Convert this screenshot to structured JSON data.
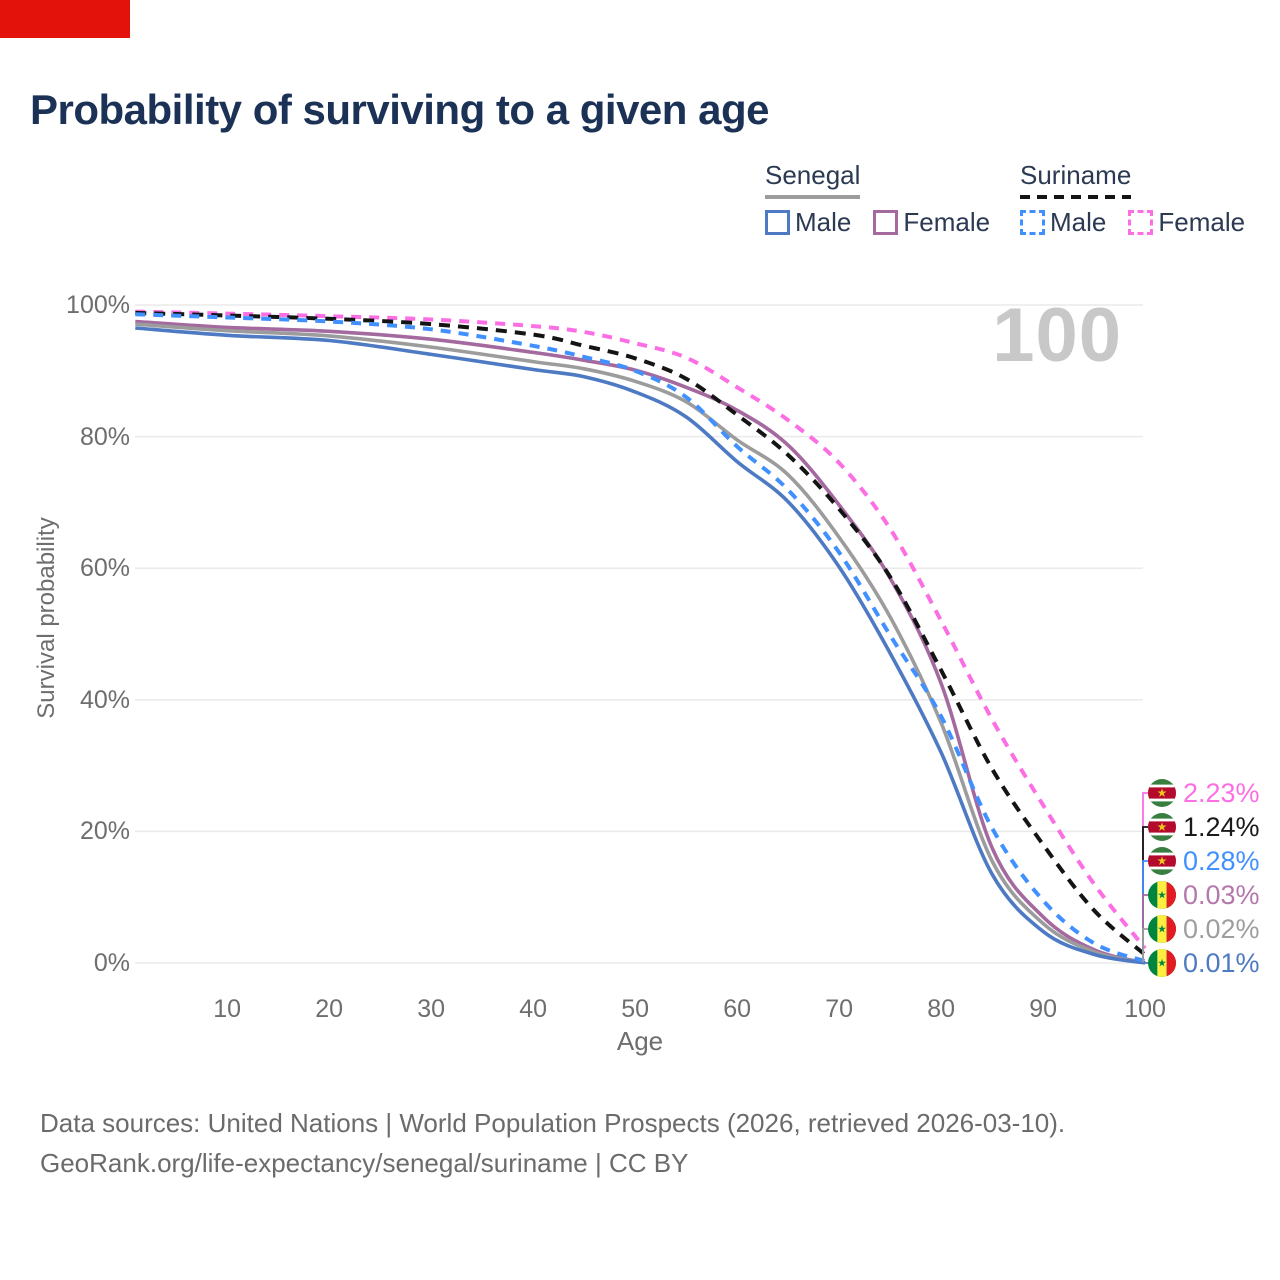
{
  "brand": {
    "accent_color": "#e3120b"
  },
  "title": "Probability of surviving to a given age",
  "watermark": "100",
  "legend": {
    "groups": [
      {
        "label": "Senegal",
        "line_style": "solid",
        "line_color": "#9c9c9c",
        "items": [
          {
            "label": "Male",
            "color": "#4d7ac2",
            "dashed": false
          },
          {
            "label": "Female",
            "color": "#a46a9f",
            "dashed": false
          }
        ]
      },
      {
        "label": "Suriname",
        "line_style": "dashed",
        "line_color": "#141414",
        "items": [
          {
            "label": "Male",
            "color": "#4190ff",
            "dashed": true
          },
          {
            "label": "Female",
            "color": "#fb6ee4",
            "dashed": true
          }
        ]
      }
    ]
  },
  "chart_data": {
    "type": "line",
    "title": "Probability of surviving to a given age",
    "xlabel": "Age",
    "ylabel": "Survival probability",
    "xlim": [
      1,
      100
    ],
    "ylim": [
      0,
      100
    ],
    "grid": "horizontal",
    "legend_position": "top-right",
    "x_ticks": [
      10,
      20,
      30,
      40,
      50,
      60,
      70,
      80,
      90,
      100
    ],
    "y_ticks": [
      {
        "pct": 100,
        "label": "100%"
      },
      {
        "pct": 80,
        "label": "80%"
      },
      {
        "pct": 60,
        "label": "60%"
      },
      {
        "pct": 40,
        "label": "40%"
      },
      {
        "pct": 20,
        "label": "20%"
      },
      {
        "pct": 0,
        "label": "0%"
      }
    ],
    "ages": [
      1,
      10,
      20,
      30,
      40,
      45,
      50,
      55,
      60,
      65,
      70,
      75,
      80,
      85,
      90,
      95,
      100
    ],
    "series": [
      {
        "name": "Suriname Female",
        "country": "Suriname",
        "sex": "Female",
        "color": "#fb6ee4",
        "dashed": true,
        "flag": "suriname",
        "end_label": "2.23%",
        "end_label_color": "#fb6ee4",
        "values": [
          99.0,
          98.7,
          98.3,
          97.8,
          96.8,
          95.9,
          94.2,
          92.0,
          87.5,
          82.5,
          76.0,
          66.0,
          52.0,
          37.0,
          24.0,
          12.0,
          2.23
        ]
      },
      {
        "name": "Suriname Total",
        "country": "Suriname",
        "sex": "Total",
        "color": "#141414",
        "dashed": true,
        "flag": "suriname",
        "end_label": "1.24%",
        "end_label_color": "#1a1a1a",
        "values": [
          98.8,
          98.4,
          97.9,
          97.1,
          95.5,
          93.8,
          91.9,
          88.8,
          83.3,
          77.2,
          69.0,
          58.7,
          44.5,
          29.5,
          18.0,
          8.0,
          1.24
        ]
      },
      {
        "name": "Suriname Male",
        "country": "Suriname",
        "sex": "Male",
        "color": "#4190ff",
        "dashed": true,
        "flag": "suriname",
        "end_label": "0.28%",
        "end_label_color": "#4190ff",
        "values": [
          98.6,
          98.1,
          97.5,
          96.3,
          93.8,
          92.1,
          90.0,
          86.0,
          78.5,
          71.9,
          62.4,
          49.8,
          37.5,
          20.5,
          9.5,
          3.0,
          0.28
        ]
      },
      {
        "name": "Senegal Female",
        "country": "Senegal",
        "sex": "Female",
        "color": "#a46a9f",
        "dashed": false,
        "flag": "senegal",
        "end_label": "0.03%",
        "end_label_color": "#b578ac",
        "values": [
          97.5,
          96.6,
          96.0,
          94.8,
          92.8,
          91.6,
          90.1,
          87.5,
          84.0,
          78.7,
          69.6,
          58.5,
          42.5,
          17.5,
          7.0,
          2.0,
          0.03
        ]
      },
      {
        "name": "Senegal Total",
        "country": "Senegal",
        "sex": "Total",
        "color": "#9c9c9c",
        "dashed": false,
        "flag": "senegal",
        "end_label": "0.02%",
        "end_label_color": "#9e9e9e",
        "values": [
          97.1,
          96.1,
          95.3,
          93.6,
          91.4,
          90.3,
          88.4,
          85.3,
          79.5,
          74.2,
          64.7,
          52.6,
          36.5,
          15.5,
          6.0,
          1.7,
          0.02
        ]
      },
      {
        "name": "Senegal Male",
        "country": "Senegal",
        "sex": "Male",
        "color": "#4d7ac2",
        "dashed": false,
        "flag": "senegal",
        "end_label": "0.01%",
        "end_label_color": "#4d7ac2",
        "values": [
          96.5,
          95.4,
          94.6,
          92.5,
          90.2,
          89.1,
          86.8,
          83.0,
          76.2,
          70.1,
          60.2,
          47.1,
          32.0,
          13.5,
          4.8,
          1.3,
          0.01
        ]
      }
    ]
  },
  "footer": {
    "line1": "Data sources: United Nations | World Population Prospects (2026, retrieved 2026-03-10).",
    "line2": "GeoRank.org/life-expectancy/senegal/suriname | CC BY"
  }
}
